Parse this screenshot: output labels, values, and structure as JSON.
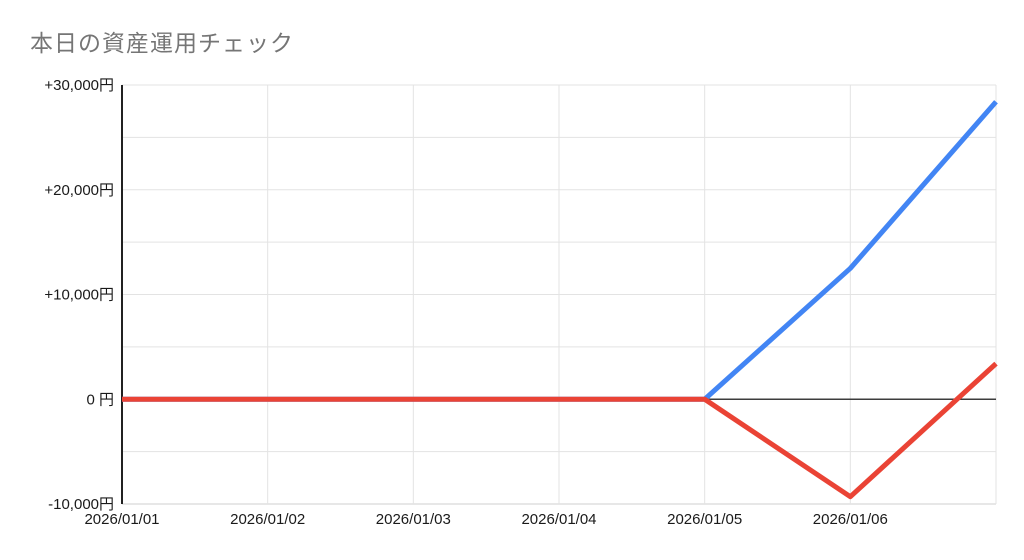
{
  "title": "本日の資産運用チェック",
  "colors": {
    "title_text": "#757575",
    "axis_label_text": "#1a1a1a",
    "gridline": "#e3e3e3",
    "bottom_frame": "#cfcfcf",
    "zero_line": "#3c3c3c",
    "left_axis": "#212121",
    "series_blue": "#4285f4",
    "series_red": "#ea4335",
    "background": "#ffffff"
  },
  "chart_data": {
    "type": "line",
    "title": "本日の資産運用チェック",
    "xlabel": "",
    "ylabel": "",
    "x_tick_labels": [
      "2026/01/01",
      "2026/01/02",
      "2026/01/03",
      "2026/01/04",
      "2026/01/05",
      "2026/01/06"
    ],
    "x_indices": [
      0,
      1,
      2,
      3,
      4,
      5,
      6
    ],
    "note": "seventh data point at right edge of plot is unlabeled",
    "series": [
      {
        "name": "blue-line",
        "color": "#4285f4",
        "values": [
          0,
          0,
          0,
          0,
          0,
          12500,
          28400
        ]
      },
      {
        "name": "red-line",
        "color": "#ea4335",
        "values": [
          0,
          0,
          0,
          0,
          0,
          -9300,
          3400
        ]
      }
    ],
    "y_ticks": [
      {
        "value": 30000,
        "label": "+30,000円"
      },
      {
        "value": 20000,
        "label": "+20,000円"
      },
      {
        "value": 10000,
        "label": "+10,000円"
      },
      {
        "value": 0,
        "label": "0 円"
      },
      {
        "value": -10000,
        "label": "-10,000円"
      }
    ],
    "y_minor_step": 5000,
    "ylim": [
      -10000,
      30000
    ],
    "xlim": [
      0,
      6
    ],
    "grid": true,
    "legend_position": "none",
    "line_width": 5
  }
}
